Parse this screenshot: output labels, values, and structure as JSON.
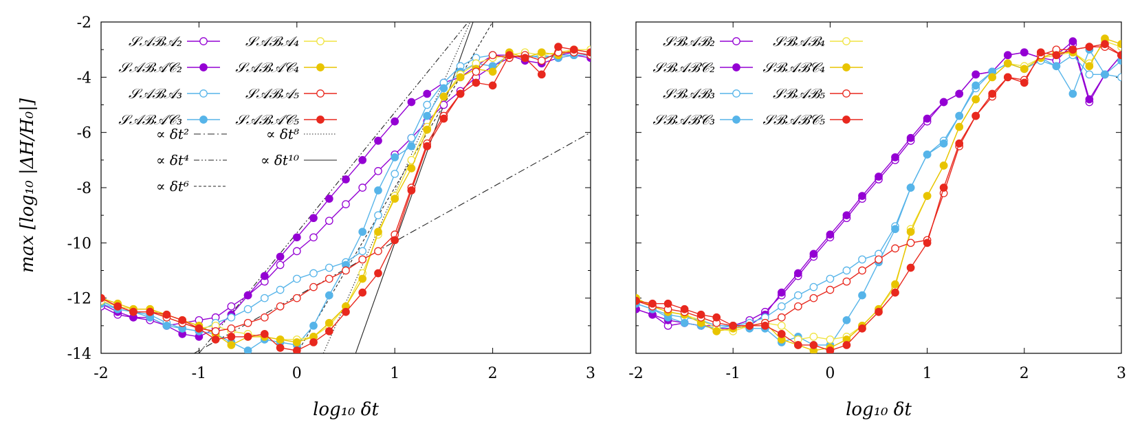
{
  "figure": {
    "ylabel": "max [log₁₀ |ΔH/H₀|]"
  },
  "chart_data": [
    {
      "type": "line",
      "xlabel": "log₁₀ δt",
      "ylabel": "max [log₁₀ |ΔH/H₀|]",
      "xlim": [
        -2,
        3
      ],
      "ylim": [
        -14,
        -2
      ],
      "xticks": [
        "-2",
        "-1",
        "0",
        "1",
        "2",
        "3"
      ],
      "yticks": [
        "-2",
        "-4",
        "-6",
        "-8",
        "-10",
        "-12",
        "-14"
      ],
      "legend_position": "top-left",
      "x": [
        -2.0,
        -1.83,
        -1.67,
        -1.5,
        -1.33,
        -1.17,
        -1.0,
        -0.83,
        -0.67,
        -0.5,
        -0.33,
        -0.17,
        0.0,
        0.17,
        0.33,
        0.5,
        0.67,
        0.83,
        1.0,
        1.17,
        1.33,
        1.5,
        1.67,
        1.83,
        2.0,
        2.17,
        2.33,
        2.5,
        2.67,
        2.83,
        3.0
      ],
      "series": [
        {
          "name": "𝒮𝒜ℬ𝒜₂",
          "color": "#9400D3",
          "marker": "open",
          "values": [
            -12.3,
            -12.6,
            -12.7,
            -12.8,
            -13.0,
            -12.9,
            -12.8,
            -12.7,
            -12.3,
            -11.9,
            -11.4,
            -10.8,
            -10.3,
            -9.8,
            -9.2,
            -8.6,
            -8.0,
            -7.4,
            -6.8,
            -6.2,
            -5.6,
            -5.0,
            -4.5,
            -4.0,
            -3.6,
            -3.3,
            -3.2,
            -3.3,
            -3.2,
            -3.1,
            -3.2
          ]
        },
        {
          "name": "𝒮𝒜ℬ𝒜𝒞₂",
          "color": "#9400D3",
          "marker": "filled",
          "values": [
            -12.2,
            -12.5,
            -12.7,
            -12.7,
            -13.0,
            -13.3,
            -13.4,
            -13.1,
            -12.6,
            -11.9,
            -11.2,
            -10.5,
            -9.8,
            -9.1,
            -8.4,
            -7.7,
            -7.0,
            -6.3,
            -5.6,
            -4.9,
            -4.6,
            -4.2,
            -4.0,
            -3.6,
            -3.2,
            -3.2,
            -3.4,
            -3.5,
            -3.3,
            -3.2,
            -3.3
          ]
        },
        {
          "name": "𝒮𝒜ℬ𝒜₃",
          "color": "#56B4E9",
          "marker": "open",
          "values": [
            -12.1,
            -12.4,
            -12.5,
            -12.6,
            -12.9,
            -13.1,
            -13.2,
            -12.9,
            -12.7,
            -12.4,
            -12.0,
            -11.7,
            -11.3,
            -11.1,
            -10.9,
            -10.7,
            -10.3,
            -9.0,
            -7.5,
            -6.2,
            -5.0,
            -4.2,
            -3.6,
            -3.3,
            -3.2,
            -3.3,
            -3.2,
            -3.3,
            -3.2,
            -3.2,
            -3.2
          ]
        },
        {
          "name": "𝒮𝒜ℬ𝒜𝒞₃",
          "color": "#56B4E9",
          "marker": "filled",
          "values": [
            -12.2,
            -12.4,
            -12.5,
            -12.7,
            -13.0,
            -13.1,
            -13.2,
            -13.3,
            -13.6,
            -13.9,
            -13.5,
            -13.6,
            -13.7,
            -13.0,
            -11.9,
            -10.8,
            -9.6,
            -8.1,
            -6.9,
            -6.5,
            -5.4,
            -4.4,
            -3.8,
            -3.5,
            -3.6,
            -3.2,
            -3.3,
            -3.2,
            -3.3,
            -3.2,
            -3.2
          ]
        },
        {
          "name": "𝒮𝒜ℬ𝒜₄",
          "color": "#F0E442",
          "marker": "open",
          "values": [
            -12.1,
            -12.3,
            -12.4,
            -12.4,
            -12.7,
            -12.9,
            -13.1,
            -13.0,
            -13.2,
            -13.3,
            -13.4,
            -13.5,
            -13.5,
            -13.4,
            -13.0,
            -12.3,
            -11.1,
            -9.7,
            -8.3,
            -7.0,
            -5.8,
            -4.7,
            -3.9,
            -3.5,
            -3.3,
            -3.2,
            -3.1,
            -3.2,
            -3.1,
            -3.0,
            -3.0
          ]
        },
        {
          "name": "𝒮𝒜ℬ𝒜𝒞₄",
          "color": "#E8C400",
          "marker": "filled",
          "values": [
            -12.0,
            -12.2,
            -12.4,
            -12.4,
            -12.6,
            -12.8,
            -13.0,
            -13.3,
            -13.7,
            -13.4,
            -13.4,
            -13.5,
            -13.6,
            -13.4,
            -12.9,
            -12.3,
            -11.3,
            -9.6,
            -8.4,
            -7.3,
            -5.9,
            -4.7,
            -4.0,
            -3.7,
            -3.8,
            -3.1,
            -3.3,
            -3.1,
            -3.2,
            -3.0,
            -3.1
          ]
        },
        {
          "name": "𝒮𝒜ℬ𝒜₅",
          "color": "#E8281E",
          "marker": "open",
          "values": [
            -12.0,
            -12.3,
            -12.5,
            -12.5,
            -12.7,
            -12.9,
            -13.1,
            -13.2,
            -13.1,
            -12.9,
            -12.7,
            -12.3,
            -12.0,
            -11.6,
            -11.3,
            -11.0,
            -10.6,
            -10.3,
            -9.7,
            -8.0,
            -6.4,
            -5.4,
            -4.6,
            -3.8,
            -3.2,
            -3.3,
            -3.2,
            -3.4,
            -3.1,
            -3.1,
            -3.2
          ]
        },
        {
          "name": "𝒮𝒜ℬ𝒜𝒞₅",
          "color": "#E8281E",
          "marker": "filled",
          "values": [
            -12.0,
            -12.3,
            -12.5,
            -12.5,
            -12.6,
            -12.8,
            -13.1,
            -13.5,
            -13.4,
            -13.4,
            -13.3,
            -13.8,
            -13.9,
            -13.6,
            -13.2,
            -12.5,
            -11.8,
            -11.1,
            -9.9,
            -8.1,
            -6.5,
            -5.5,
            -4.6,
            -4.2,
            -4.3,
            -3.2,
            -3.3,
            -3.9,
            -2.9,
            -3.0,
            -3.1
          ]
        }
      ],
      "reference_lines": [
        {
          "name": "∝ δt²",
          "style": "dash-dot",
          "slope": 2,
          "points": [
            [
              -1.05,
              -14
            ],
            [
              3,
              -6.0
            ]
          ]
        },
        {
          "name": "∝ δt⁴",
          "style": "dash-dot-dot",
          "slope": 4,
          "points": [
            [
              -1.0,
              -14
            ],
            [
              1.75,
              -2.0
            ]
          ]
        },
        {
          "name": "∝ δt⁶",
          "style": "dashed",
          "slope": 6,
          "points": [
            [
              0.0,
              -14
            ],
            [
              2.0,
              -2.0
            ]
          ]
        },
        {
          "name": "∝ δt⁸",
          "style": "dotted",
          "slope": 8,
          "points": [
            [
              0.27,
              -14
            ],
            [
              1.77,
              -2.0
            ]
          ]
        },
        {
          "name": "∝ δt¹⁰",
          "style": "solid",
          "slope": 10,
          "points": [
            [
              0.6,
              -14
            ],
            [
              1.8,
              -2.0
            ]
          ]
        }
      ]
    },
    {
      "type": "line",
      "xlabel": "log₁₀ δt",
      "xlim": [
        -2,
        3
      ],
      "ylim": [
        -14,
        -2
      ],
      "xticks": [
        "-2",
        "-1",
        "0",
        "1",
        "2",
        "3"
      ],
      "legend_position": "top-left",
      "x": [
        -2.0,
        -1.83,
        -1.67,
        -1.5,
        -1.33,
        -1.17,
        -1.0,
        -0.83,
        -0.67,
        -0.5,
        -0.33,
        -0.17,
        0.0,
        0.17,
        0.33,
        0.5,
        0.67,
        0.83,
        1.0,
        1.17,
        1.33,
        1.5,
        1.67,
        1.83,
        2.0,
        2.17,
        2.33,
        2.5,
        2.67,
        2.83,
        3.0
      ],
      "series": [
        {
          "name": "𝒮ℬ𝒜ℬ₂",
          "color": "#9400D3",
          "marker": "open",
          "values": [
            -12.4,
            -12.6,
            -13.0,
            -12.9,
            -13.0,
            -13.0,
            -13.0,
            -12.8,
            -12.5,
            -11.9,
            -11.2,
            -10.5,
            -9.8,
            -9.1,
            -8.4,
            -7.7,
            -7.0,
            -6.3,
            -5.6,
            -4.9,
            -4.6,
            -3.9,
            -3.8,
            -3.2,
            -3.1,
            -3.3,
            -3.4,
            -2.8,
            -4.9,
            -3.9,
            -3.2
          ]
        },
        {
          "name": "𝒮ℬ𝒜ℬ𝒞₂",
          "color": "#9400D3",
          "marker": "filled",
          "values": [
            -12.4,
            -12.6,
            -12.8,
            -12.9,
            -13.0,
            -13.1,
            -13.1,
            -13.0,
            -12.6,
            -11.8,
            -11.1,
            -10.4,
            -9.7,
            -9.0,
            -8.3,
            -7.6,
            -6.9,
            -6.2,
            -5.5,
            -4.9,
            -4.6,
            -3.9,
            -3.8,
            -3.2,
            -3.1,
            -3.3,
            -3.2,
            -2.7,
            -4.8,
            -3.9,
            -3.2
          ]
        },
        {
          "name": "𝒮ℬ𝒜ℬ₃",
          "color": "#56B4E9",
          "marker": "open",
          "values": [
            -12.2,
            -12.4,
            -12.6,
            -12.7,
            -12.8,
            -13.0,
            -13.0,
            -12.9,
            -12.7,
            -12.3,
            -11.9,
            -11.6,
            -11.3,
            -11.0,
            -10.6,
            -10.4,
            -9.4,
            -8.0,
            -6.8,
            -6.3,
            -5.4,
            -4.4,
            -3.8,
            -3.5,
            -3.7,
            -3.4,
            -3.6,
            -3.2,
            -3.9,
            -3.9,
            -4.0
          ]
        },
        {
          "name": "𝒮ℬ𝒜ℬ𝒞₃",
          "color": "#56B4E9",
          "marker": "filled",
          "values": [
            -12.2,
            -12.4,
            -12.7,
            -12.9,
            -13.0,
            -13.1,
            -13.0,
            -13.1,
            -13.1,
            -13.6,
            -13.4,
            -13.7,
            -13.7,
            -12.8,
            -11.9,
            -10.7,
            -9.5,
            -8.0,
            -6.8,
            -6.4,
            -5.4,
            -4.3,
            -3.8,
            -3.5,
            -3.7,
            -3.3,
            -3.6,
            -4.6,
            -3.0,
            -3.9,
            -3.4
          ]
        },
        {
          "name": "𝒮ℬ𝒜ℬ₄",
          "color": "#F0E442",
          "marker": "open",
          "values": [
            -12.0,
            -12.3,
            -12.5,
            -12.6,
            -12.8,
            -13.1,
            -13.2,
            -13.0,
            -12.9,
            -13.0,
            -13.5,
            -13.4,
            -13.5,
            -13.4,
            -13.0,
            -12.4,
            -11.6,
            -9.5,
            -8.3,
            -7.2,
            -5.8,
            -4.8,
            -4.0,
            -3.5,
            -3.6,
            -3.3,
            -3.2,
            -3.1,
            -3.5,
            -2.7,
            -2.9
          ]
        },
        {
          "name": "𝒮ℬ𝒜ℬ𝒞₄",
          "color": "#E8C400",
          "marker": "filled",
          "values": [
            -12.0,
            -12.3,
            -12.5,
            -12.6,
            -12.9,
            -13.2,
            -13.1,
            -13.0,
            -12.9,
            -13.5,
            -13.7,
            -13.9,
            -13.8,
            -13.5,
            -13.0,
            -12.4,
            -11.5,
            -9.6,
            -8.3,
            -7.2,
            -5.8,
            -4.8,
            -4.0,
            -3.5,
            -3.7,
            -3.3,
            -3.1,
            -3.1,
            -3.6,
            -2.6,
            -2.8
          ]
        },
        {
          "name": "𝒮ℬ𝒜ℬ₅",
          "color": "#E8281E",
          "marker": "open",
          "values": [
            -12.1,
            -12.3,
            -12.4,
            -12.5,
            -12.7,
            -12.9,
            -13.0,
            -13.0,
            -12.9,
            -12.7,
            -12.3,
            -12.0,
            -11.7,
            -11.4,
            -11.0,
            -10.6,
            -10.2,
            -10.0,
            -9.9,
            -8.2,
            -6.5,
            -5.4,
            -4.7,
            -4.0,
            -4.1,
            -3.2,
            -3.0,
            -3.0,
            -2.9,
            -2.9,
            -3.2
          ]
        },
        {
          "name": "𝒮ℬ𝒜ℬ𝒞₅",
          "color": "#E8281E",
          "marker": "filled",
          "values": [
            -12.1,
            -12.2,
            -12.2,
            -12.4,
            -12.6,
            -12.7,
            -13.0,
            -13.0,
            -13.0,
            -13.3,
            -13.7,
            -13.7,
            -13.9,
            -13.7,
            -13.1,
            -12.5,
            -11.8,
            -10.9,
            -10.0,
            -8.0,
            -6.4,
            -5.4,
            -4.6,
            -4.0,
            -4.2,
            -3.1,
            -3.2,
            -3.0,
            -2.9,
            -2.8,
            -3.2
          ]
        }
      ]
    }
  ]
}
